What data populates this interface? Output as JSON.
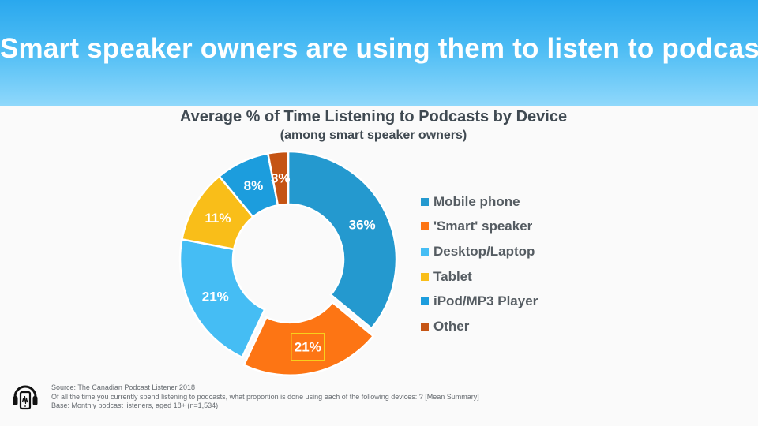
{
  "headline": "Smart speaker owners are using them to listen to podcasts.",
  "chart_data": {
    "type": "pie",
    "title": "Average % of Time Listening to Podcasts by Device",
    "subtitle": "(among smart speaker owners)",
    "legend_position": "right",
    "slices": [
      {
        "label": "Mobile phone",
        "value": 36,
        "display": "36%",
        "color": "#2499cf",
        "exploded": false,
        "highlighted": false
      },
      {
        "label": "'Smart' speaker",
        "value": 21,
        "display": "21%",
        "color": "#fd7514",
        "exploded": true,
        "highlighted": true
      },
      {
        "label": "Desktop/Laptop",
        "value": 21,
        "display": "21%",
        "color": "#45bdf4",
        "exploded": false,
        "highlighted": false
      },
      {
        "label": "Tablet",
        "value": 11,
        "display": "11%",
        "color": "#f9be19",
        "exploded": false,
        "highlighted": false
      },
      {
        "label": "iPod/MP3 Player",
        "value": 8,
        "display": "8%",
        "color": "#1c9ddd",
        "exploded": false,
        "highlighted": false
      },
      {
        "label": "Other",
        "value": 3,
        "display": "3%",
        "color": "#c55414",
        "exploded": false,
        "highlighted": false
      }
    ]
  },
  "footer": {
    "source": "Source:  The Canadian Podcast Listener 2018",
    "question": "Of all the time you currently spend listening to podcasts, what proportion is done using each of the following devices: ? [Mean Summary]",
    "base": "Base: Monthly podcast listeners, aged 18+  (n=1,534)"
  },
  "icons": {
    "footer": "headphones-phone-icon"
  }
}
